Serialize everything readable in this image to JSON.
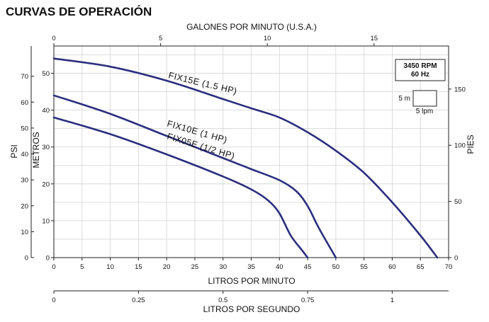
{
  "title": "CURVAS DE OPERACIÓN",
  "rating_box": {
    "rpm": "3450 RPM",
    "freq": "60 Hz",
    "scale_m": "5 m",
    "scale_lpm": "5 lpm"
  },
  "chart_data": {
    "type": "line",
    "xlabel": "LITROS POR MINUTO",
    "x2label": "GALONES POR MINUTO (U.S.A.)",
    "x3label": "LITROS POR SEGUNDO",
    "ylabel_psi": "PSI",
    "ylabel_metros": "METROS",
    "ylabel_pies": "PIES",
    "xlim": [
      0,
      70
    ],
    "ylim_metros": [
      0,
      55
    ],
    "x_ticks": [
      "0",
      "5",
      "10",
      "15",
      "20",
      "25",
      "30",
      "35",
      "40",
      "45",
      "50",
      "55",
      "60",
      "65",
      "70"
    ],
    "gpm_ticks": [
      "0",
      "5",
      "10",
      "15"
    ],
    "lps_ticks": [
      "0",
      "0.25",
      "0.5",
      "0.75",
      "1"
    ],
    "psi_ticks": [
      "0",
      "10",
      "20",
      "30",
      "40",
      "50",
      "60",
      "70"
    ],
    "metros_ticks": [
      "0",
      "10",
      "20",
      "30",
      "40",
      "50"
    ],
    "pies_ticks": [
      "0",
      "50",
      "100",
      "150"
    ],
    "grid": true,
    "series": [
      {
        "name": "FIX15E (1.5 HP)",
        "x": [
          0,
          10,
          20,
          30,
          35,
          40,
          45,
          50,
          55,
          60,
          65,
          68
        ],
        "y": [
          54,
          51.8,
          48,
          43,
          40.5,
          38,
          34,
          29,
          23,
          15,
          6,
          0
        ]
      },
      {
        "name": "FIX10E (1 HP)",
        "x": [
          0,
          10,
          20,
          30,
          35,
          40,
          43,
          45,
          47,
          50
        ],
        "y": [
          44,
          39,
          33,
          27,
          24,
          21,
          18,
          14,
          8,
          0
        ]
      },
      {
        "name": "FIX05E (1/2 HP)",
        "x": [
          0,
          10,
          20,
          30,
          35,
          38,
          40,
          42,
          44,
          45
        ],
        "y": [
          38,
          33.5,
          28,
          22,
          18.5,
          15.5,
          12,
          6,
          2,
          0
        ]
      }
    ]
  }
}
